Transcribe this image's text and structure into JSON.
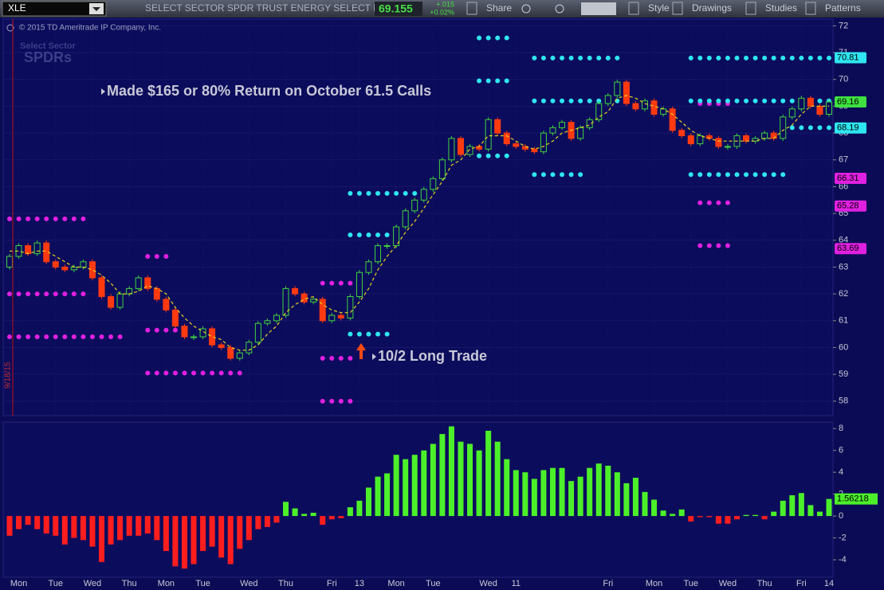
{
  "toolbar": {
    "symbol": "XLE",
    "description": "SELECT SECTOR SPDR TRUST ENERGY SELECT INDEX",
    "last": "69.155",
    "change": "+.015",
    "change_pct": "+0.02%",
    "buttons": [
      "Share",
      "Style",
      "Drawings",
      "Studies",
      "Patterns"
    ]
  },
  "copyright": "© 2015 TD Ameritrade IP Company, Inc.",
  "watermark": [
    "Select Sector",
    "SPDRs"
  ],
  "chart_data": [
    {
      "type": "candlestick",
      "categories": [
        null,
        "Mon",
        null,
        null,
        null,
        "Tue",
        null,
        null,
        null,
        "Wed",
        null,
        null,
        null,
        "Thu",
        null,
        null,
        null,
        "Mon",
        null,
        null,
        null,
        "Tue",
        null,
        null,
        null,
        null,
        "Wed",
        null,
        null,
        null,
        "Thu",
        null,
        null,
        null,
        null,
        "Fri",
        null,
        null,
        "13",
        null,
        null,
        null,
        "Mon",
        null,
        null,
        null,
        "Tue",
        null,
        null,
        null,
        null,
        null,
        "Wed",
        null,
        null,
        "11",
        null,
        null,
        null,
        null,
        null,
        null,
        null,
        null,
        null,
        "Fri",
        null,
        null,
        null,
        null,
        "Mon",
        null,
        null,
        null,
        "Tue",
        null,
        null,
        null,
        "Wed",
        null,
        null,
        null,
        "Thu",
        null,
        null,
        null,
        "Fri",
        null,
        null,
        "14"
      ],
      "open": [
        63.0,
        63.4,
        63.8,
        63.5,
        63.9,
        63.2,
        63.0,
        62.9,
        63.0,
        63.2,
        62.6,
        61.9,
        61.5,
        62.0,
        62.2,
        62.6,
        62.2,
        61.8,
        61.4,
        60.8,
        60.4,
        60.4,
        60.7,
        60.1,
        60.0,
        59.6,
        59.8,
        60.2,
        60.9,
        61.0,
        61.2,
        62.2,
        62.0,
        61.7,
        61.8,
        61.0,
        61.2,
        61.1,
        61.9,
        62.8,
        63.2,
        63.8,
        63.8,
        64.5,
        65.1,
        65.5,
        65.9,
        66.3,
        67.0,
        67.8,
        67.2,
        67.5,
        67.4,
        68.5,
        68.0,
        67.6,
        67.5,
        67.4,
        67.3,
        68.0,
        68.2,
        68.4,
        67.8,
        68.2,
        68.5,
        69.1,
        69.4,
        69.9,
        69.1,
        68.9,
        69.2,
        68.7,
        68.9,
        68.1,
        67.9,
        67.6,
        67.9,
        67.8,
        67.5,
        67.5,
        67.9,
        67.7,
        67.8,
        68.0,
        67.8,
        68.6,
        68.9,
        69.3,
        69.0,
        68.7
      ],
      "close": [
        63.4,
        63.8,
        63.5,
        63.9,
        63.2,
        63.0,
        62.9,
        63.0,
        63.2,
        62.6,
        61.9,
        61.5,
        62.0,
        62.2,
        62.6,
        62.2,
        61.8,
        61.4,
        60.8,
        60.4,
        60.4,
        60.7,
        60.1,
        60.0,
        59.6,
        59.8,
        60.2,
        60.9,
        61.0,
        61.2,
        62.2,
        62.0,
        61.7,
        61.8,
        61.0,
        61.2,
        61.1,
        61.9,
        62.8,
        63.2,
        63.8,
        63.8,
        64.5,
        65.1,
        65.5,
        65.9,
        66.3,
        67.0,
        67.8,
        67.2,
        67.5,
        67.4,
        68.5,
        68.0,
        67.6,
        67.5,
        67.4,
        67.3,
        68.0,
        68.2,
        68.4,
        67.8,
        68.2,
        68.5,
        69.1,
        69.4,
        69.9,
        69.1,
        68.9,
        69.2,
        68.7,
        68.9,
        68.1,
        67.9,
        67.6,
        67.9,
        67.8,
        67.5,
        67.5,
        67.9,
        67.7,
        67.8,
        68.0,
        67.8,
        68.6,
        68.9,
        69.3,
        69.0,
        68.7,
        69.16
      ],
      "up_color": "#3fd23f",
      "down_color": "#ff3a10",
      "ma_values": [
        63.6,
        63.6,
        63.5,
        63.6,
        63.6,
        63.4,
        63.2,
        63.0,
        63.0,
        62.9,
        62.7,
        62.4,
        62.0,
        62.0,
        62.1,
        62.3,
        62.2,
        62.0,
        61.5,
        61.1,
        60.8,
        60.6,
        60.4,
        60.3,
        60.0,
        59.9,
        59.9,
        60.1,
        60.5,
        60.8,
        61.3,
        61.6,
        61.8,
        61.9,
        61.6,
        61.4,
        61.3,
        61.3,
        61.7,
        62.2,
        62.9,
        63.4,
        63.8,
        64.3,
        64.7,
        65.2,
        65.7,
        66.2,
        66.8,
        67.0,
        67.4,
        67.5,
        67.9,
        67.9,
        67.9,
        67.7,
        67.5,
        67.4,
        67.5,
        67.7,
        68.0,
        68.1,
        68.2,
        68.3,
        68.6,
        68.8,
        69.3,
        69.4,
        69.3,
        69.1,
        69.0,
        68.9,
        68.7,
        68.4,
        68.1,
        67.9,
        67.8,
        67.7,
        67.7,
        67.7,
        67.7,
        67.7,
        67.8,
        67.8,
        68.1,
        68.3,
        68.7,
        69.0,
        69.0,
        69.0
      ],
      "ma_color": "#e6d21e",
      "ylim": [
        57.46,
        72.25
      ],
      "yticks": [
        58,
        59,
        60,
        61,
        62,
        63,
        64,
        65,
        66,
        67,
        68,
        69,
        70,
        71,
        72
      ],
      "levels": [
        {
          "from": 0,
          "to": 8,
          "value": 64.8,
          "color": "#e020e0"
        },
        {
          "from": 0,
          "to": 8,
          "value": 62.0,
          "color": "#e020e0"
        },
        {
          "from": 0,
          "to": 12,
          "value": 60.4,
          "color": "#e020e0"
        },
        {
          "from": 15,
          "to": 17,
          "value": 63.4,
          "color": "#e020e0"
        },
        {
          "from": 15,
          "to": 19,
          "value": 60.65,
          "color": "#e020e0"
        },
        {
          "from": 15,
          "to": 25,
          "value": 59.05,
          "color": "#e020e0"
        },
        {
          "from": 34,
          "to": 37,
          "value": 62.4,
          "color": "#e020e0"
        },
        {
          "from": 34,
          "to": 37,
          "value": 59.6,
          "color": "#e020e0"
        },
        {
          "from": 34,
          "to": 37,
          "value": 58.0,
          "color": "#e020e0"
        },
        {
          "from": 75,
          "to": 78,
          "value": 69.1,
          "color": "#e020e0"
        },
        {
          "from": 75,
          "to": 78,
          "value": 65.4,
          "color": "#e020e0"
        },
        {
          "from": 75,
          "to": 78,
          "value": 63.8,
          "color": "#e020e0"
        },
        {
          "from": 51,
          "to": 54,
          "value": 71.55,
          "color": "#2ee6f0"
        },
        {
          "from": 51,
          "to": 54,
          "value": 69.95,
          "color": "#2ee6f0"
        },
        {
          "from": 51,
          "to": 54,
          "value": 67.15,
          "color": "#2ee6f0"
        },
        {
          "from": 37,
          "to": 44,
          "value": 65.75,
          "color": "#2ee6f0"
        },
        {
          "from": 37,
          "to": 41,
          "value": 64.2,
          "color": "#2ee6f0"
        },
        {
          "from": 37,
          "to": 41,
          "value": 60.5,
          "color": "#2ee6f0"
        },
        {
          "from": 57,
          "to": 66,
          "value": 70.8,
          "color": "#2ee6f0"
        },
        {
          "from": 57,
          "to": 66,
          "value": 69.2,
          "color": "#2ee6f0"
        },
        {
          "from": 57,
          "to": 62,
          "value": 66.45,
          "color": "#2ee6f0"
        },
        {
          "from": 74,
          "to": 89,
          "value": 70.8,
          "color": "#2ee6f0"
        },
        {
          "from": 74,
          "to": 89,
          "value": 69.2,
          "color": "#2ee6f0"
        },
        {
          "from": 74,
          "to": 84,
          "value": 66.45,
          "color": "#2ee6f0"
        },
        {
          "from": 85,
          "to": 89,
          "value": 68.2,
          "color": "#2ee6f0"
        }
      ],
      "price_tags": [
        {
          "value": 70.81,
          "color": "#2ee6f0"
        },
        {
          "value": 69.16,
          "color": "#3fe03f"
        },
        {
          "value": 68.19,
          "color": "#2ee6f0"
        },
        {
          "value": 66.31,
          "color": "#e020e0"
        },
        {
          "value": 65.28,
          "color": "#e020e0"
        },
        {
          "value": 63.69,
          "color": "#e020e0"
        }
      ],
      "annotations": [
        "Made $165 or 80% Return on October 61.5 Calls",
        "10/2 Long Trade"
      ],
      "marker_label": "9/18/15"
    },
    {
      "type": "bar",
      "values": [
        -1.8,
        -1.2,
        -0.8,
        -1.2,
        -1.6,
        -1.8,
        -2.6,
        -2.0,
        -2.2,
        -2.8,
        -4.2,
        -2.6,
        -2.2,
        -1.8,
        -1.8,
        -1.6,
        -2.2,
        -3.2,
        -4.6,
        -4.8,
        -4.4,
        -3.2,
        -2.8,
        -3.8,
        -4.4,
        -3.0,
        -2.2,
        -1.2,
        -1.0,
        -0.6,
        1.3,
        0.7,
        0.2,
        0.3,
        -0.8,
        -0.3,
        -0.2,
        0.8,
        1.4,
        2.6,
        3.6,
        3.9,
        5.6,
        5.2,
        5.6,
        6.0,
        6.6,
        7.5,
        8.2,
        6.8,
        6.6,
        6.0,
        7.8,
        6.8,
        5.2,
        4.2,
        4.0,
        3.4,
        4.2,
        4.4,
        4.4,
        3.2,
        3.6,
        4.4,
        4.8,
        4.6,
        4.0,
        3.0,
        3.5,
        2.2,
        1.5,
        0.5,
        0.2,
        0.6,
        -0.5,
        -0.1,
        -0.1,
        -0.7,
        -0.7,
        -0.3,
        0.1,
        0.1,
        -0.3,
        0.4,
        1.4,
        1.9,
        2.1,
        1.0,
        0.4,
        1.56218
      ],
      "pos_color": "#4cf02a",
      "neg_color": "#ff1e1e",
      "ylim": [
        -5.6,
        8.6
      ],
      "yticks": [
        -4,
        -2,
        0,
        2,
        4,
        6,
        8
      ]
    }
  ]
}
